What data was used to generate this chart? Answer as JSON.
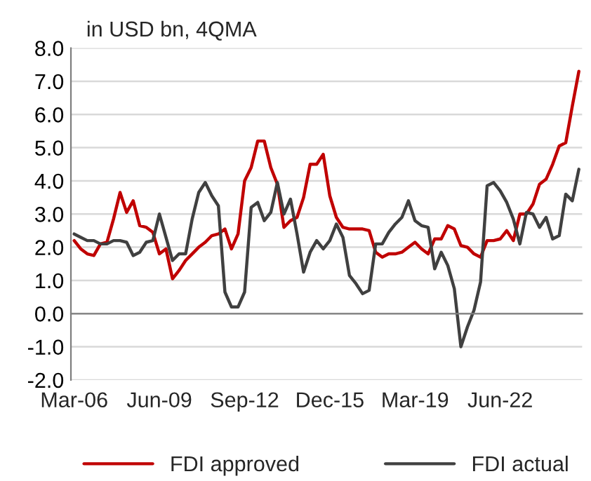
{
  "chart_data": {
    "type": "line",
    "title": "in USD bn, 4QMA",
    "categories": [
      "Mar-06",
      null,
      null,
      null,
      null,
      null,
      null,
      null,
      null,
      null,
      null,
      null,
      null,
      "Jun-09",
      null,
      null,
      null,
      null,
      null,
      null,
      null,
      null,
      null,
      null,
      null,
      null,
      "Sep-12",
      null,
      null,
      null,
      null,
      null,
      null,
      null,
      null,
      null,
      null,
      null,
      null,
      "Dec-15",
      null,
      null,
      null,
      null,
      null,
      null,
      null,
      null,
      null,
      null,
      null,
      null,
      "Mar-19",
      null,
      null,
      null,
      null,
      null,
      null,
      null,
      null,
      null,
      null,
      null,
      null,
      "Jun-22",
      null,
      null,
      null,
      null,
      null,
      null,
      null,
      null,
      null,
      null,
      null,
      null
    ],
    "series": [
      {
        "name": "FDI approved",
        "color": "#c00000",
        "values": [
          2.2,
          1.95,
          1.8,
          1.75,
          2.1,
          2.15,
          2.85,
          3.65,
          3.05,
          3.4,
          2.65,
          2.6,
          2.45,
          1.8,
          1.95,
          1.05,
          1.3,
          1.6,
          1.8,
          2.0,
          2.15,
          2.35,
          2.4,
          2.55,
          1.95,
          2.4,
          4.0,
          4.4,
          5.2,
          5.2,
          4.4,
          3.9,
          2.6,
          2.8,
          2.9,
          3.5,
          4.5,
          4.5,
          4.8,
          3.55,
          2.9,
          2.6,
          2.55,
          2.55,
          2.55,
          2.5,
          1.85,
          1.7,
          1.8,
          1.8,
          1.85,
          2.0,
          2.15,
          1.95,
          1.8,
          2.25,
          2.25,
          2.65,
          2.55,
          2.05,
          2.0,
          1.8,
          1.7,
          2.2,
          2.2,
          2.25,
          2.5,
          2.2,
          3.0,
          3.0,
          3.3,
          3.9,
          4.05,
          4.5,
          5.05,
          5.15,
          6.25,
          7.3
        ]
      },
      {
        "name": "FDI actual",
        "color": "#404040",
        "values": [
          2.4,
          2.3,
          2.2,
          2.2,
          2.1,
          2.1,
          2.2,
          2.2,
          2.15,
          1.75,
          1.85,
          2.15,
          2.2,
          3.0,
          2.3,
          1.6,
          1.8,
          1.8,
          2.85,
          3.65,
          3.95,
          3.55,
          3.25,
          0.65,
          0.2,
          0.2,
          0.65,
          3.2,
          3.35,
          2.8,
          3.05,
          3.95,
          3.0,
          3.45,
          2.4,
          1.25,
          1.85,
          2.2,
          1.95,
          2.2,
          2.7,
          2.3,
          1.15,
          0.9,
          0.6,
          0.7,
          2.1,
          2.1,
          2.45,
          2.7,
          2.9,
          3.4,
          2.8,
          2.65,
          2.6,
          1.35,
          1.85,
          1.45,
          0.75,
          -1.0,
          -0.4,
          0.1,
          0.95,
          3.85,
          3.95,
          3.7,
          3.35,
          2.85,
          2.1,
          3.05,
          3.0,
          2.6,
          2.9,
          2.25,
          2.35,
          3.6,
          3.4,
          4.35
        ]
      }
    ],
    "ylim": [
      -2,
      8
    ],
    "yticks": [
      {
        "value": -2,
        "label": "-2.0"
      },
      {
        "value": -1,
        "label": "-1.0"
      },
      {
        "value": 0,
        "label": "0.0"
      },
      {
        "value": 1,
        "label": "1.0"
      },
      {
        "value": 2,
        "label": "2.0"
      },
      {
        "value": 3,
        "label": "3.0"
      },
      {
        "value": 4,
        "label": "4.0"
      },
      {
        "value": 5,
        "label": "5.0"
      },
      {
        "value": 6,
        "label": "6.0"
      },
      {
        "value": 7,
        "label": "7.0"
      },
      {
        "value": 8,
        "label": "8.0"
      }
    ],
    "grid": "y",
    "legend": "bottom",
    "marker": "none",
    "line_style": "solid"
  }
}
